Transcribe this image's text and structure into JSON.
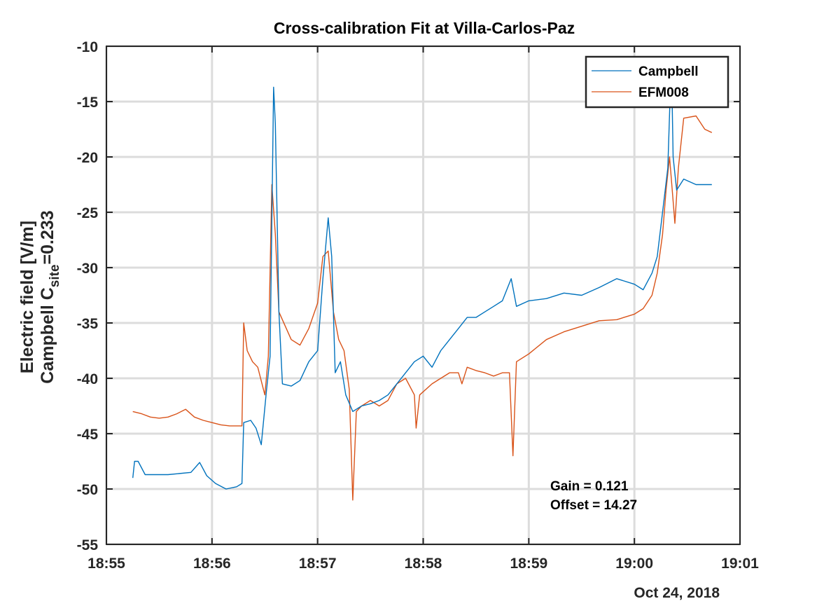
{
  "chart_data": {
    "type": "line",
    "title": "Cross-calibration Fit at Villa-Carlos-Paz",
    "ylabel_line1": "Electric field [V/m]",
    "ylabel_line2": {
      "main": "Campbell C",
      "sub": "site",
      "tail": "=0.233"
    },
    "xlabel": "",
    "x_date_label": "Oct 24, 2018",
    "x_ticks": [
      "18:55",
      "18:56",
      "18:57",
      "18:58",
      "18:59",
      "19:00",
      "19:01"
    ],
    "y_ticks": [
      "-10",
      "-15",
      "-20",
      "-25",
      "-30",
      "-35",
      "-40",
      "-45",
      "-50",
      "-55"
    ],
    "xlim": [
      "18:55:00",
      "19:01:00"
    ],
    "ylim": [
      -55,
      -10
    ],
    "grid": true,
    "legend_placement": "top-right",
    "annotations": [
      "Gain = 0.121",
      "Offset = 14.27"
    ],
    "series": [
      {
        "name": "Campbell",
        "color": "#0072BD",
        "points": [
          [
            "18:55:15",
            -49
          ],
          [
            "18:55:16",
            -47.5
          ],
          [
            "18:55:18",
            -47.5
          ],
          [
            "18:55:22",
            -48.7
          ],
          [
            "18:55:35",
            -48.7
          ],
          [
            "18:55:48",
            -48.5
          ],
          [
            "18:55:53",
            -47.6
          ],
          [
            "18:55:57",
            -48.8
          ],
          [
            "18:56:02",
            -49.5
          ],
          [
            "18:56:08",
            -50
          ],
          [
            "18:56:14",
            -49.8
          ],
          [
            "18:56:17",
            -49.5
          ],
          [
            "18:56:18",
            -44
          ],
          [
            "18:56:22",
            -43.8
          ],
          [
            "18:56:25",
            -44.5
          ],
          [
            "18:56:28",
            -46
          ],
          [
            "18:56:31",
            -41
          ],
          [
            "18:56:33",
            -38
          ],
          [
            "18:56:35",
            -13.7
          ],
          [
            "18:56:36",
            -17
          ],
          [
            "18:56:38",
            -34
          ],
          [
            "18:56:40",
            -40.5
          ],
          [
            "18:56:45",
            -40.7
          ],
          [
            "18:56:50",
            -40.2
          ],
          [
            "18:56:55",
            -38.5
          ],
          [
            "18:57:00",
            -37.5
          ],
          [
            "18:57:03",
            -31
          ],
          [
            "18:57:06",
            -25.5
          ],
          [
            "18:57:08",
            -29
          ],
          [
            "18:57:10",
            -39.5
          ],
          [
            "18:57:13",
            -38.5
          ],
          [
            "18:57:16",
            -41.5
          ],
          [
            "18:57:20",
            -43
          ],
          [
            "18:57:25",
            -42.5
          ],
          [
            "18:57:30",
            -42.3
          ],
          [
            "18:57:35",
            -42
          ],
          [
            "18:57:40",
            -41.5
          ],
          [
            "18:57:45",
            -40.5
          ],
          [
            "18:57:50",
            -39.5
          ],
          [
            "18:57:55",
            -38.5
          ],
          [
            "18:58:00",
            -38
          ],
          [
            "18:58:05",
            -39
          ],
          [
            "18:58:10",
            -37.5
          ],
          [
            "18:58:15",
            -36.5
          ],
          [
            "18:58:20",
            -35.5
          ],
          [
            "18:58:25",
            -34.5
          ],
          [
            "18:58:30",
            -34.5
          ],
          [
            "18:58:35",
            -34
          ],
          [
            "18:58:40",
            -33.5
          ],
          [
            "18:58:45",
            -33
          ],
          [
            "18:58:50",
            -31
          ],
          [
            "18:58:53",
            -33.5
          ],
          [
            "18:59:00",
            -33
          ],
          [
            "18:59:10",
            -32.8
          ],
          [
            "18:59:20",
            -32.3
          ],
          [
            "18:59:30",
            -32.5
          ],
          [
            "18:59:40",
            -31.8
          ],
          [
            "18:59:50",
            -31
          ],
          [
            "19:00:00",
            -31.5
          ],
          [
            "19:00:05",
            -32
          ],
          [
            "19:00:10",
            -30.5
          ],
          [
            "19:00:13",
            -29
          ],
          [
            "19:00:16",
            -25
          ],
          [
            "19:00:19",
            -21
          ],
          [
            "19:00:21",
            -11
          ],
          [
            "19:00:22",
            -20
          ],
          [
            "19:00:24",
            -23
          ],
          [
            "19:00:28",
            -22
          ],
          [
            "19:00:35",
            -22.5
          ],
          [
            "19:00:44",
            -22.5
          ]
        ]
      },
      {
        "name": "EFM008",
        "color": "#D95319",
        "points": [
          [
            "18:55:15",
            -43
          ],
          [
            "18:55:20",
            -43.2
          ],
          [
            "18:55:25",
            -43.5
          ],
          [
            "18:55:30",
            -43.6
          ],
          [
            "18:55:35",
            -43.5
          ],
          [
            "18:55:40",
            -43.2
          ],
          [
            "18:55:45",
            -42.8
          ],
          [
            "18:55:50",
            -43.5
          ],
          [
            "18:55:55",
            -43.8
          ],
          [
            "18:56:00",
            -44
          ],
          [
            "18:56:05",
            -44.2
          ],
          [
            "18:56:10",
            -44.3
          ],
          [
            "18:56:15",
            -44.3
          ],
          [
            "18:56:17",
            -44.3
          ],
          [
            "18:56:18",
            -35
          ],
          [
            "18:56:20",
            -37.5
          ],
          [
            "18:56:23",
            -38.5
          ],
          [
            "18:56:26",
            -39
          ],
          [
            "18:56:30",
            -41.5
          ],
          [
            "18:56:32",
            -38
          ],
          [
            "18:56:34",
            -22.5
          ],
          [
            "18:56:36",
            -27
          ],
          [
            "18:56:38",
            -34
          ],
          [
            "18:56:45",
            -36.5
          ],
          [
            "18:56:50",
            -37
          ],
          [
            "18:56:55",
            -35.5
          ],
          [
            "18:57:00",
            -33.2
          ],
          [
            "18:57:03",
            -29
          ],
          [
            "18:57:06",
            -28.5
          ],
          [
            "18:57:09",
            -34
          ],
          [
            "18:57:12",
            -36.5
          ],
          [
            "18:57:15",
            -37.5
          ],
          [
            "18:57:18",
            -41
          ],
          [
            "18:57:20",
            -51
          ],
          [
            "18:57:22",
            -43
          ],
          [
            "18:57:25",
            -42.5
          ],
          [
            "18:57:30",
            -42
          ],
          [
            "18:57:35",
            -42.5
          ],
          [
            "18:57:40",
            -42
          ],
          [
            "18:57:45",
            -40.5
          ],
          [
            "18:57:50",
            -40
          ],
          [
            "18:57:55",
            -41.5
          ],
          [
            "18:57:56",
            -44.5
          ],
          [
            "18:57:58",
            -41.5
          ],
          [
            "18:58:05",
            -40.5
          ],
          [
            "18:58:10",
            -40
          ],
          [
            "18:58:15",
            -39.5
          ],
          [
            "18:58:20",
            -39.5
          ],
          [
            "18:58:22",
            -40.5
          ],
          [
            "18:58:25",
            -39
          ],
          [
            "18:58:30",
            -39.3
          ],
          [
            "18:58:35",
            -39.5
          ],
          [
            "18:58:40",
            -39.8
          ],
          [
            "18:58:45",
            -39.5
          ],
          [
            "18:58:49",
            -39.5
          ],
          [
            "18:58:51",
            -47
          ],
          [
            "18:58:53",
            -38.5
          ],
          [
            "18:59:00",
            -37.8
          ],
          [
            "18:59:10",
            -36.5
          ],
          [
            "18:59:20",
            -35.8
          ],
          [
            "18:59:30",
            -35.3
          ],
          [
            "18:59:40",
            -34.8
          ],
          [
            "18:59:50",
            -34.7
          ],
          [
            "19:00:00",
            -34.2
          ],
          [
            "19:00:05",
            -33.7
          ],
          [
            "19:00:10",
            -32.5
          ],
          [
            "19:00:13",
            -30.5
          ],
          [
            "19:00:16",
            -27
          ],
          [
            "19:00:18",
            -23
          ],
          [
            "19:00:20",
            -20
          ],
          [
            "19:00:22",
            -24
          ],
          [
            "19:00:23",
            -26
          ],
          [
            "19:00:25",
            -21
          ],
          [
            "19:00:28",
            -16.5
          ],
          [
            "19:00:35",
            -16.3
          ],
          [
            "19:00:40",
            -17.5
          ],
          [
            "19:00:44",
            -17.8
          ]
        ]
      }
    ]
  }
}
